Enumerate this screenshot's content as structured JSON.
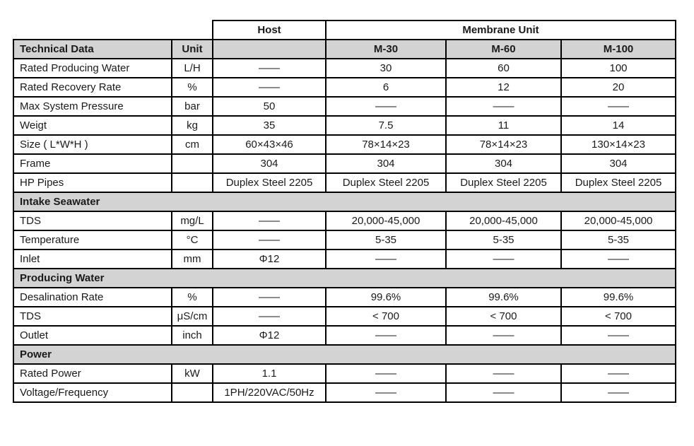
{
  "colors": {
    "header_bg": "#d3d3d3",
    "border": "#000000",
    "text": "#1a1a1a",
    "page_bg": "#ffffff"
  },
  "table": {
    "group_header": {
      "host": "Host",
      "membrane": "Membrane Unit"
    },
    "column_header": {
      "col1": "Technical Data",
      "col2": "Unit",
      "col3": "",
      "col4": "M-30",
      "col5": "M-60",
      "col6": "M-100"
    },
    "rows": [
      {
        "kind": "data",
        "label": "Rated Producing Water",
        "unit": "L/H",
        "values": [
          "——",
          "30",
          "60",
          "100"
        ]
      },
      {
        "kind": "data",
        "label": "Rated Recovery Rate",
        "unit": "%",
        "values": [
          "——",
          "6",
          "12",
          "20"
        ]
      },
      {
        "kind": "data",
        "label": "Max System Pressure",
        "unit": "bar",
        "values": [
          "50",
          "——",
          "——",
          "——"
        ]
      },
      {
        "kind": "data",
        "label": "Weigt",
        "unit": "kg",
        "values": [
          "35",
          "7.5",
          "11",
          "14"
        ]
      },
      {
        "kind": "data",
        "label": "Size ( L*W*H )",
        "unit": "cm",
        "values": [
          "60×43×46",
          "78×14×23",
          "78×14×23",
          "130×14×23"
        ]
      },
      {
        "kind": "data",
        "label": "Frame",
        "unit": "",
        "values": [
          "304",
          "304",
          "304",
          "304"
        ]
      },
      {
        "kind": "data",
        "label": "HP Pipes",
        "unit": "",
        "values": [
          "Duplex Steel 2205",
          "Duplex Steel 2205",
          "Duplex Steel 2205",
          "Duplex Steel 2205"
        ]
      },
      {
        "kind": "section",
        "label": "Intake Seawater"
      },
      {
        "kind": "data",
        "label": "TDS",
        "unit": "mg/L",
        "values": [
          "——",
          "20,000-45,000",
          "20,000-45,000",
          "20,000-45,000"
        ]
      },
      {
        "kind": "data",
        "label": "Temperature",
        "unit": "°C",
        "values": [
          "——",
          "5-35",
          "5-35",
          "5-35"
        ]
      },
      {
        "kind": "data",
        "label": "Inlet",
        "unit": "mm",
        "values": [
          "Φ12",
          "——",
          "——",
          "——"
        ]
      },
      {
        "kind": "section",
        "label": "Producing Water"
      },
      {
        "kind": "data",
        "label": "Desalination Rate",
        "unit": "%",
        "values": [
          "——",
          "99.6%",
          "99.6%",
          "99.6%"
        ]
      },
      {
        "kind": "data",
        "label": "TDS",
        "unit": "μS/cm",
        "values": [
          "——",
          "< 700",
          "< 700",
          "< 700"
        ]
      },
      {
        "kind": "data",
        "label": "Outlet",
        "unit": "inch",
        "values": [
          "Φ12",
          "——",
          "——",
          "——"
        ]
      },
      {
        "kind": "section",
        "label": "Power"
      },
      {
        "kind": "data",
        "label": "Rated Power",
        "unit": "kW",
        "values": [
          "1.1",
          "——",
          "——",
          "——"
        ]
      },
      {
        "kind": "data",
        "label": "Voltage/Frequency",
        "unit": "",
        "values": [
          "1PH/220VAC/50Hz",
          "——",
          "——",
          "——"
        ]
      }
    ]
  }
}
